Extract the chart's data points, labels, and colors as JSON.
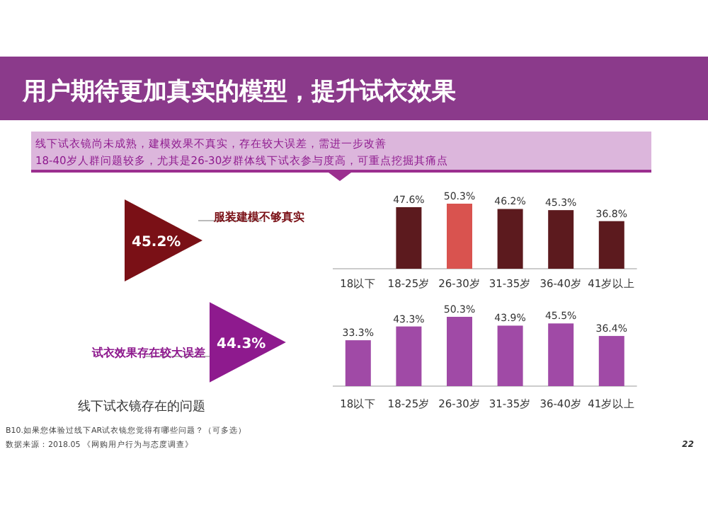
{
  "chart_data": [
    {
      "type": "other",
      "title": "用户期待更加真实的模型，提升试衣效果",
      "subtitle": "线下试衣镜尚未成熟，建模效果不真实，存在较大误差，需进一步改善",
      "annotations": [
        "18-40岁人群问题较多，尤其是26-30岁群体线下试衣参与度高，可重点挖掘其痛点",
        "22"
      ]
    },
    {
      "type": "other",
      "title": "线下试衣镜存在的问题",
      "categories": [
        "服装建模不够真实",
        "试衣效果存在较大误差"
      ],
      "values": [
        45.2,
        44.3
      ],
      "value_labels": [
        "45.2%",
        "44.3%"
      ],
      "colors": [
        "#7a1016",
        "#8e1a8e"
      ],
      "annotations": [
        "B10.如果您体验过线下AR试衣镜您觉得有哪些问题？（可多选）",
        "数据来源：2018.05 《网购用户行为与态度调查》"
      ]
    },
    {
      "type": "bar",
      "categories": [
        "18以下",
        "18-25岁",
        "26-30岁",
        "31-35岁",
        "36-40岁",
        "41岁以上"
      ],
      "values": [
        null,
        47.6,
        50.3,
        46.2,
        45.3,
        36.8
      ],
      "value_labels": [
        null,
        "47.6%",
        "50.3%",
        "46.2%",
        "45.3%",
        "36.8%"
      ],
      "colors": [
        null,
        "#5c1a1e",
        "#d9534f",
        "#5c1a1e",
        "#5c1a1e",
        "#5c1a1e"
      ]
    },
    {
      "type": "bar",
      "categories": [
        "18以下",
        "18-25岁",
        "26-30岁",
        "31-35岁",
        "36-40岁",
        "41岁以上"
      ],
      "values": [
        33.3,
        43.3,
        50.3,
        43.9,
        45.5,
        36.4
      ],
      "value_labels": [
        "33.3%",
        "43.3%",
        "50.3%",
        "43.9%",
        "45.5%",
        "36.4%"
      ],
      "color": "#a04aa6"
    }
  ]
}
